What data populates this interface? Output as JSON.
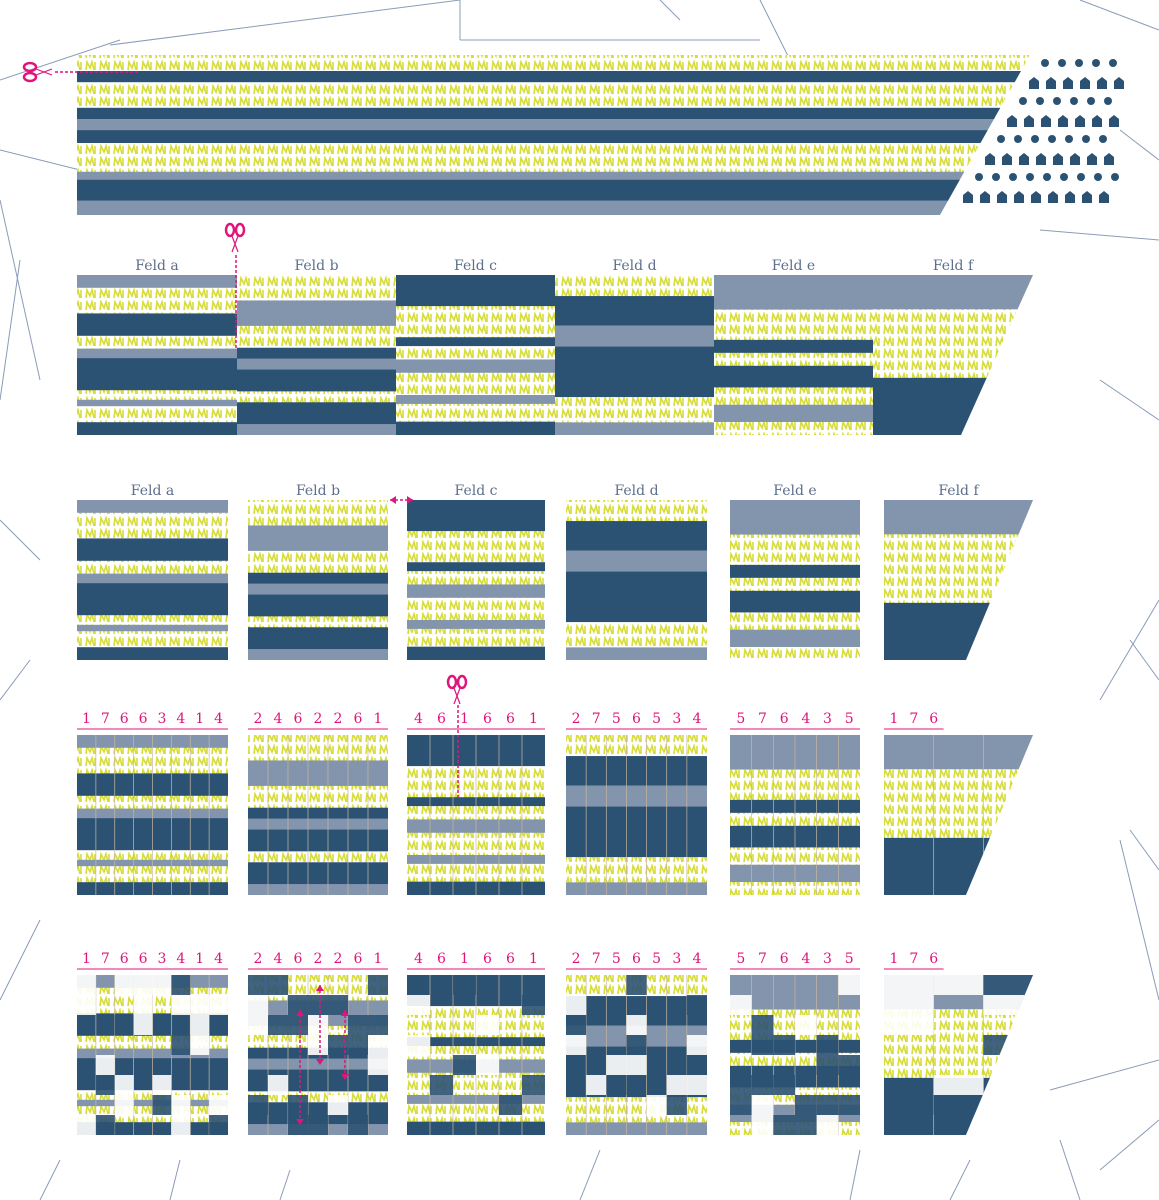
{
  "colors": {
    "dark_stripe": "#2c5273",
    "grey_stripe": "#8394ad",
    "pattern_yellow": "#d6dc3a",
    "accent_pink": "#e0147a",
    "map_lines": "#8a9cb8"
  },
  "icons": [
    "scissors-icon",
    "double-arrow-icon",
    "house-icon",
    "dot-icon",
    "figure-icon"
  ],
  "fields": [
    {
      "label": "Feld a",
      "numbers": [
        "1",
        "7",
        "6",
        "6",
        "3",
        "4",
        "1",
        "4"
      ]
    },
    {
      "label": "Feld b",
      "numbers": [
        "2",
        "4",
        "6",
        "2",
        "2",
        "6",
        "1"
      ]
    },
    {
      "label": "Feld c",
      "numbers": [
        "4",
        "6",
        "1",
        "6",
        "6",
        "1"
      ]
    },
    {
      "label": "Feld d",
      "numbers": [
        "2",
        "7",
        "5",
        "6",
        "5",
        "3",
        "4"
      ]
    },
    {
      "label": "Feld e",
      "numbers": [
        "5",
        "7",
        "6",
        "4",
        "3",
        "5"
      ]
    },
    {
      "label": "Feld f",
      "numbers": [
        "1",
        "7",
        "6"
      ]
    }
  ]
}
